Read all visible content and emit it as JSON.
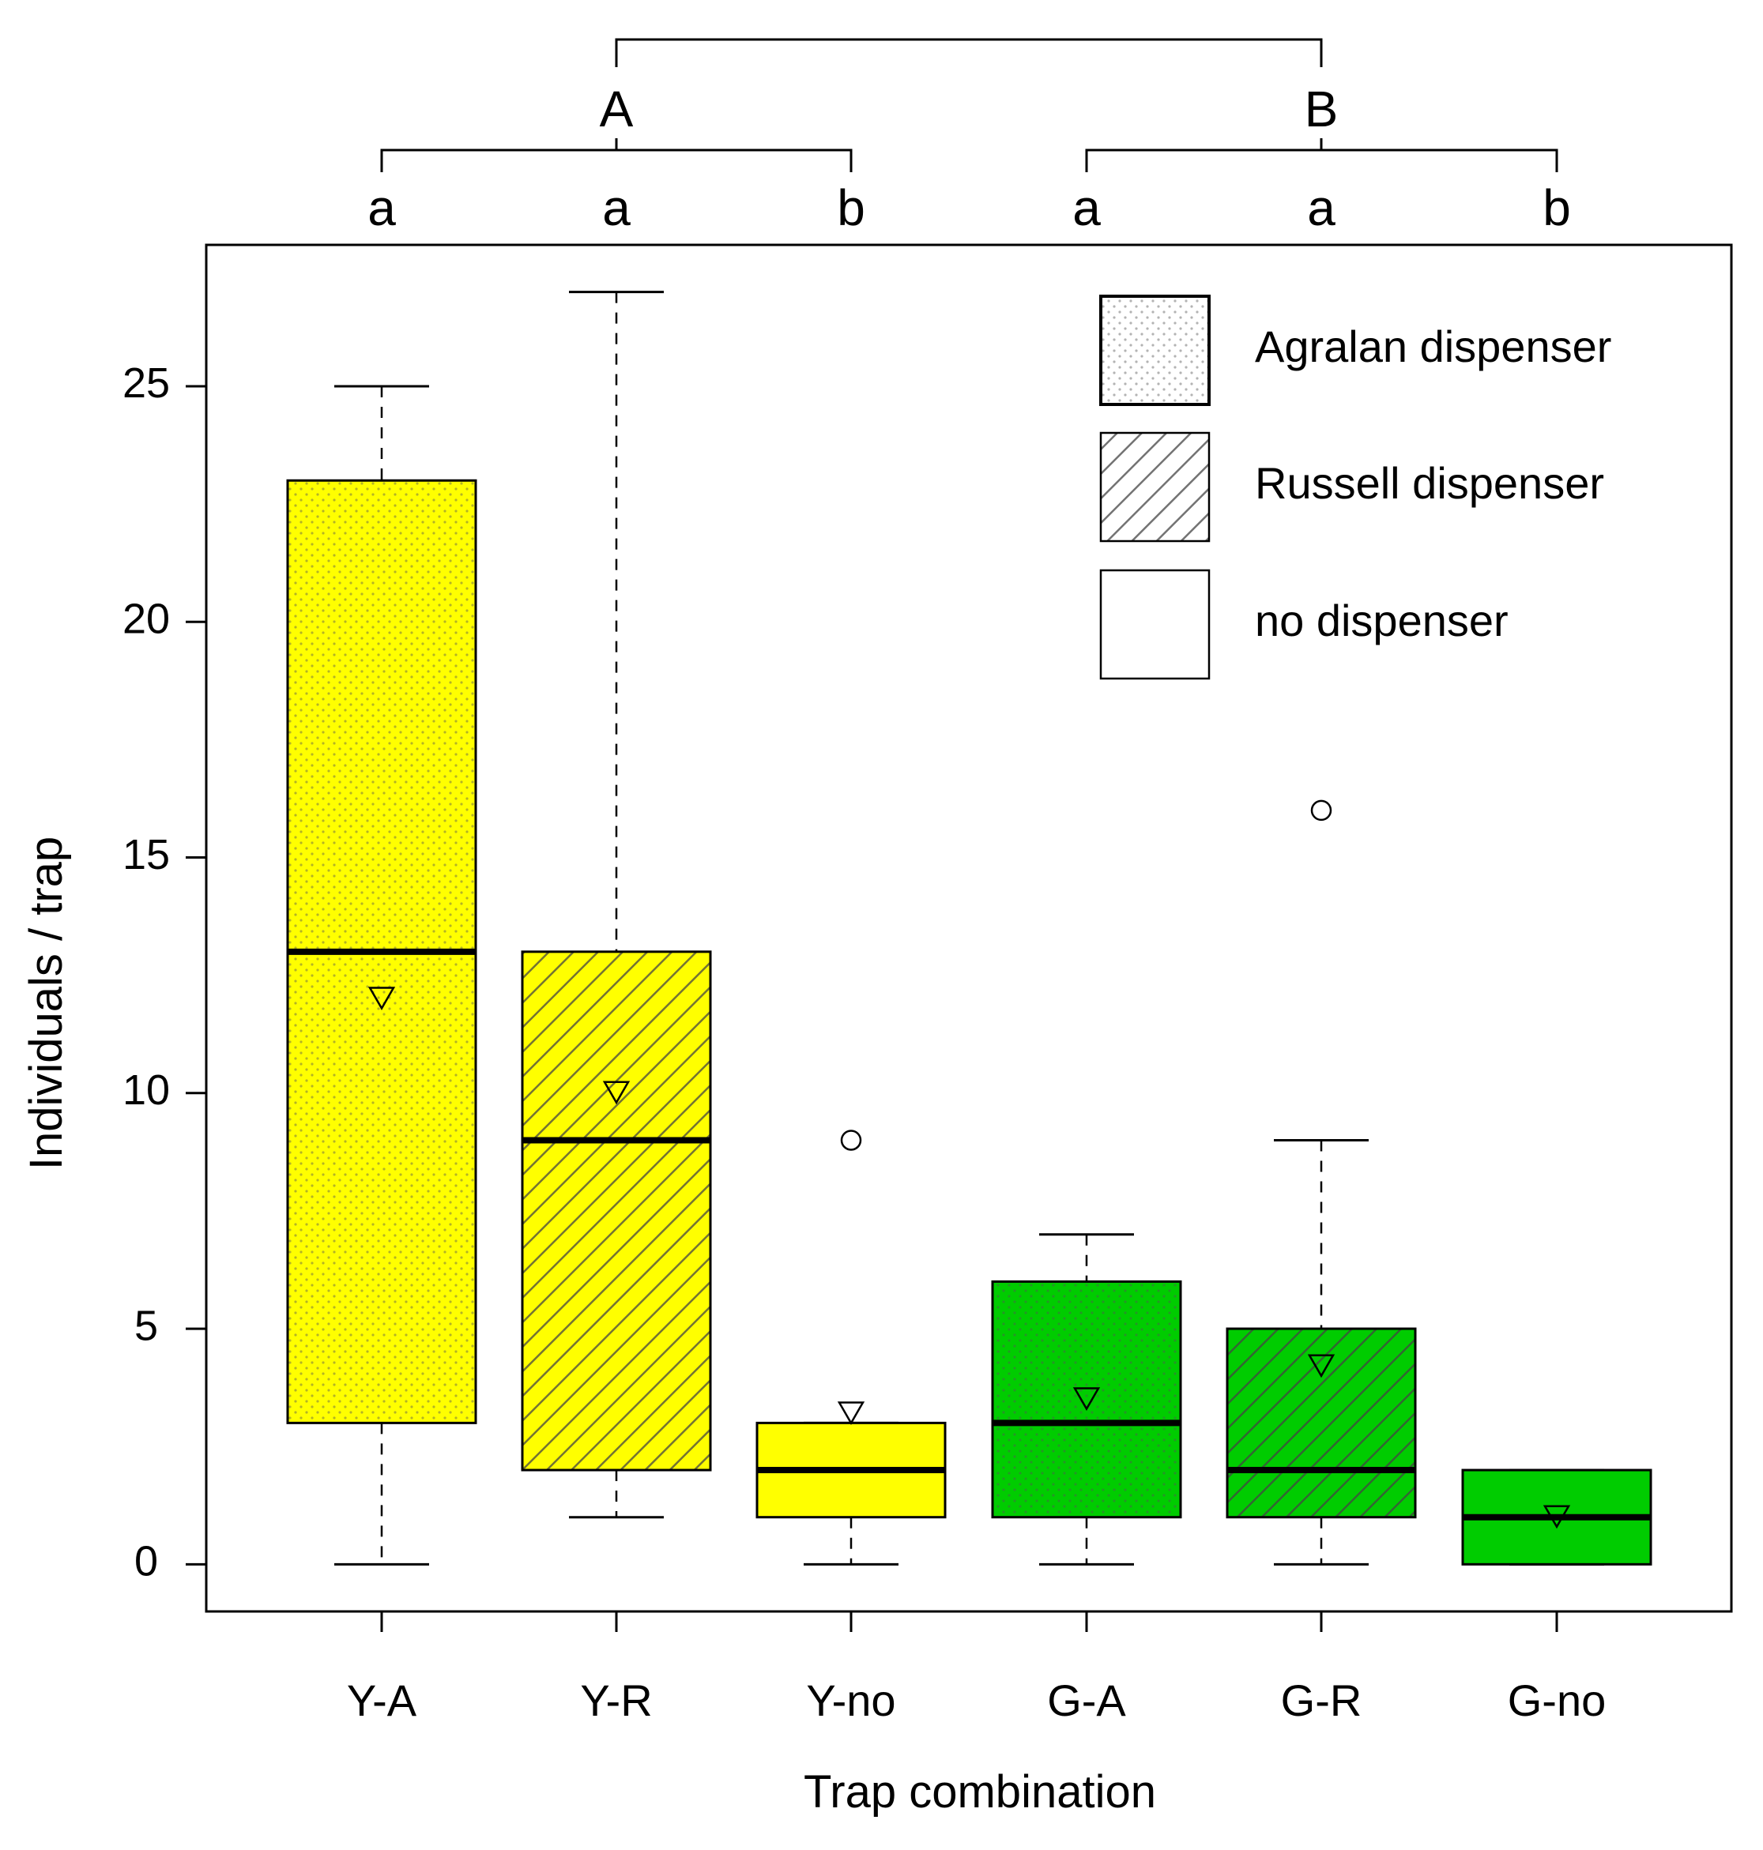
{
  "chart_data": {
    "type": "boxplot",
    "xlabel": "Trap combination",
    "ylabel": "Individuals / trap",
    "ylim": [
      -1,
      28
    ],
    "yticks": [
      0,
      5,
      10,
      15,
      20,
      25
    ],
    "categories": [
      "Y-A",
      "Y-R",
      "Y-no",
      "G-A",
      "G-R",
      "G-no"
    ],
    "boxes": [
      {
        "label": "Y-A",
        "min": 0,
        "q1": 3,
        "median": 13,
        "q3": 23,
        "max": 25,
        "mean": 12,
        "outliers": [],
        "color": "#FFFF00",
        "pattern": "dots"
      },
      {
        "label": "Y-R",
        "min": 1,
        "q1": 2,
        "median": 9,
        "q3": 13,
        "max": 27,
        "mean": 10,
        "outliers": [],
        "color": "#FFFF00",
        "pattern": "hatch"
      },
      {
        "label": "Y-no",
        "min": 0,
        "q1": 1,
        "median": 2,
        "q3": 3,
        "max": 3,
        "mean": 3.2,
        "outliers": [
          9
        ],
        "color": "#FFFF00",
        "pattern": "none"
      },
      {
        "label": "G-A",
        "min": 0,
        "q1": 1,
        "median": 3,
        "q3": 6,
        "max": 7,
        "mean": 3.5,
        "outliers": [],
        "color": "#00CC00",
        "pattern": "dots"
      },
      {
        "label": "G-R",
        "min": 0,
        "q1": 1,
        "median": 2,
        "q3": 5,
        "max": 9,
        "mean": 4.2,
        "outliers": [
          16
        ],
        "color": "#00CC00",
        "pattern": "hatch"
      },
      {
        "label": "G-no",
        "min": 0,
        "q1": 0,
        "median": 1,
        "q3": 2,
        "max": 2,
        "mean": 1,
        "outliers": [],
        "color": "#00CC00",
        "pattern": "none"
      }
    ],
    "legend": {
      "placement": "top-right",
      "items": [
        {
          "label": "Agralan dispenser",
          "pattern": "dots"
        },
        {
          "label": "Russell dispenser",
          "pattern": "hatch"
        },
        {
          "label": "no dispenser",
          "pattern": "none"
        }
      ]
    },
    "group_letters": [
      "A",
      "B"
    ],
    "letters": [
      "a",
      "a",
      "b",
      "a",
      "a",
      "b"
    ]
  }
}
